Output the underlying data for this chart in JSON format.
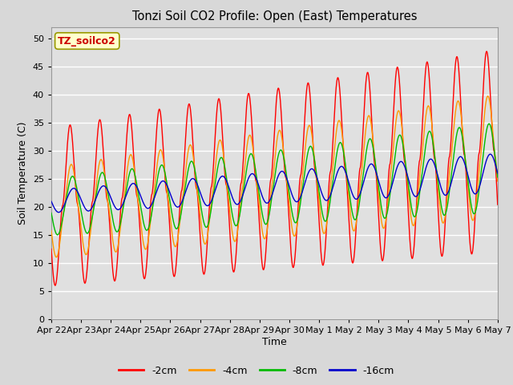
{
  "title": "Tonzi Soil CO2 Profile: Open (East) Temperatures",
  "ylabel": "Soil Temperature (C)",
  "xlabel": "Time",
  "annotation": "TZ_soilco2",
  "annotation_color": "#cc0000",
  "annotation_bg": "#ffffcc",
  "annotation_edge": "#999900",
  "ylim": [
    0,
    52
  ],
  "yticks": [
    0,
    5,
    10,
    15,
    20,
    25,
    30,
    35,
    40,
    45,
    50
  ],
  "colors": {
    "-2cm": "#ff0000",
    "-4cm": "#ff9900",
    "-8cm": "#00bb00",
    "-16cm": "#0000cc"
  },
  "legend_labels": [
    "-2cm",
    "-4cm",
    "-8cm",
    "-16cm"
  ],
  "bg_color": "#d8d8d8",
  "plot_bg": "#e0e0e0",
  "grid_color": "#ffffff",
  "x_tick_labels": [
    "Apr 22",
    "Apr 23",
    "Apr 24",
    "Apr 25",
    "Apr 26",
    "Apr 27",
    "Apr 28",
    "Apr 29",
    "Apr 30",
    "May 1",
    "May 2",
    "May 3",
    "May 4",
    "May 5",
    "May 6",
    "May 7"
  ],
  "n_days": 15,
  "samples_per_day": 144
}
